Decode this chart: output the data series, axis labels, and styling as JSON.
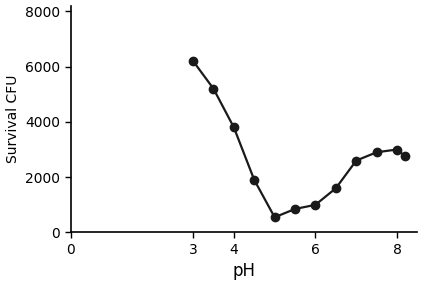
{
  "x": [
    3,
    3.5,
    4,
    4.5,
    5,
    5.5,
    6,
    6.5,
    7,
    7.5,
    8,
    8.2
  ],
  "y": [
    6200,
    5200,
    3800,
    1900,
    550,
    850,
    1000,
    1600,
    2600,
    2900,
    3000,
    2750
  ],
  "xlabel": "pH",
  "ylabel": "Survival CFU",
  "xlim": [
    0,
    8.5
  ],
  "ylim": [
    0,
    8200
  ],
  "yticks": [
    0,
    2000,
    4000,
    6000,
    8000
  ],
  "xticks": [
    0,
    3,
    4,
    6,
    8
  ],
  "line_color": "#1a1a1a",
  "marker_color": "#1a1a1a",
  "marker_size": 6,
  "line_width": 1.6,
  "background_color": "#ffffff",
  "xlabel_fontsize": 12,
  "ylabel_fontsize": 10,
  "tick_fontsize": 10
}
